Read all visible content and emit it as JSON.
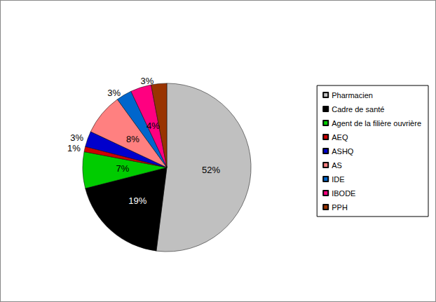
{
  "chart_data": {
    "type": "pie",
    "categories": [
      "Pharmacien",
      "Cadre de santé",
      "Agent de la filière ouvrière",
      "AEQ",
      "ASHQ",
      "AS",
      "IDE",
      "IBODE",
      "PPH"
    ],
    "values": [
      52,
      19,
      7,
      1,
      3,
      8,
      3,
      4,
      3
    ],
    "value_labels": [
      "52%",
      "19%",
      "7%",
      "1%",
      "3%",
      "8%",
      "3%",
      "4%",
      "3%"
    ],
    "colors": [
      "#c0c0c0",
      "#000000",
      "#00cc00",
      "#cc0000",
      "#0000cc",
      "#ff8080",
      "#0066cc",
      "#ff0080",
      "#993300"
    ],
    "data_labels": true,
    "legend": "right"
  }
}
